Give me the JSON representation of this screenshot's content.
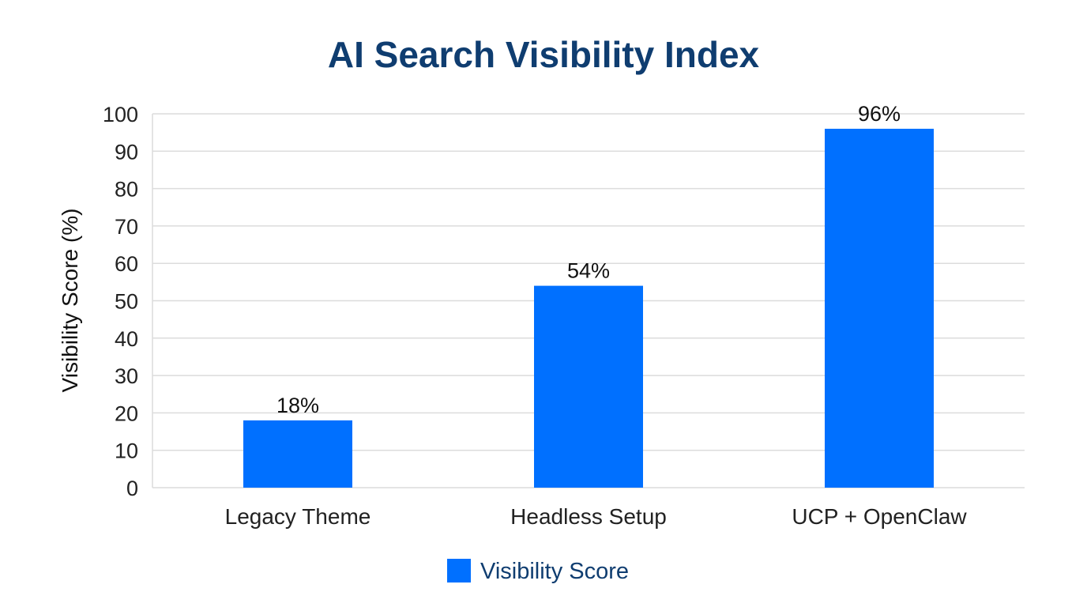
{
  "chart_data": {
    "type": "bar",
    "title": "AI Search Visibility Index",
    "categories": [
      "Legacy Theme",
      "Headless Setup",
      "UCP + OpenClaw"
    ],
    "series": [
      {
        "name": "Visibility Score",
        "values": [
          18,
          54,
          96
        ],
        "color": "#0070FF"
      }
    ],
    "data_labels": [
      "18%",
      "54%",
      "96%"
    ],
    "xlabel": "",
    "ylabel": "Visibility Score (%)",
    "ylim": [
      0,
      100
    ],
    "yticks": [
      0,
      10,
      20,
      30,
      40,
      50,
      60,
      70,
      80,
      90,
      100
    ],
    "grid": true,
    "legend": "bottom-center",
    "title_color": "#0F3D70"
  }
}
